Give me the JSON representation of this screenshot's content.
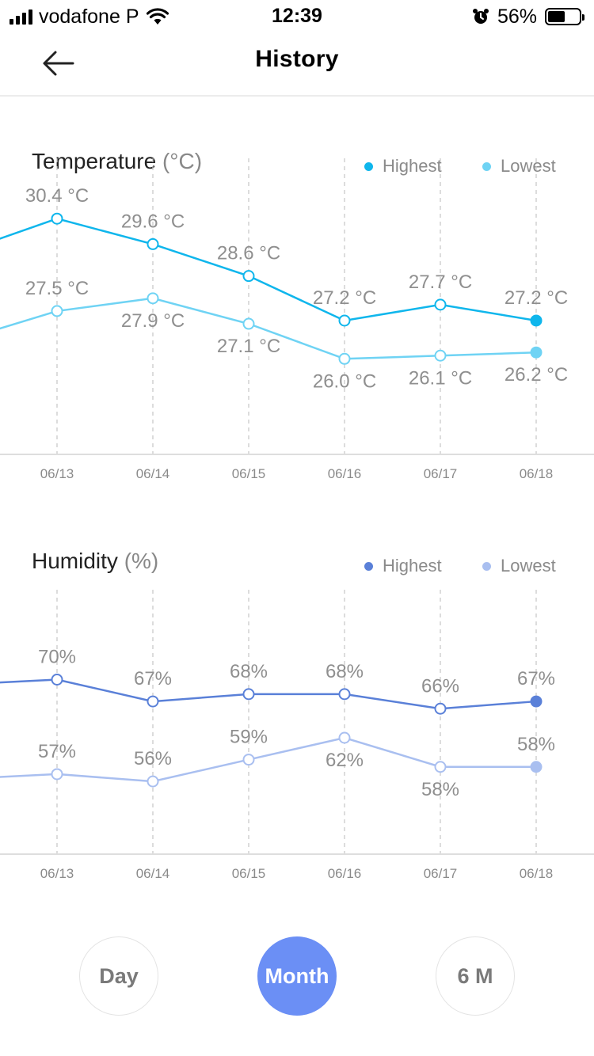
{
  "status_bar": {
    "carrier": "vodafone P",
    "time": "12:39",
    "battery": "56%",
    "battery_level": 0.56
  },
  "header": {
    "title": "History"
  },
  "temperature": {
    "title": "Temperature",
    "unit": "(°C)",
    "legend": [
      {
        "label": "Highest",
        "color": "#0fb6ec"
      },
      {
        "label": "Lowest",
        "color": "#6fd3f4"
      }
    ]
  },
  "humidity": {
    "title": "Humidity",
    "unit": "(%)",
    "legend": [
      {
        "label": "Highest",
        "color": "#5a80d8"
      },
      {
        "label": "Lowest",
        "color": "#a9bff0"
      }
    ]
  },
  "range_buttons": [
    {
      "label": "Day",
      "active": false
    },
    {
      "label": "Month",
      "active": true
    },
    {
      "label": "6 M",
      "active": false
    }
  ],
  "chart_data": [
    {
      "type": "line",
      "title": "Temperature (°C)",
      "categories": [
        "06/13",
        "06/14",
        "06/15",
        "06/16",
        "06/17",
        "06/18"
      ],
      "leading_values": {
        "Highest": 29.6,
        "Lowest": 26.8
      },
      "series": [
        {
          "name": "Highest",
          "color": "#0fb6ec",
          "values": [
            30.4,
            29.6,
            28.6,
            27.2,
            27.7,
            27.2
          ],
          "labels": [
            "30.4 °C",
            "29.6 °C",
            "28.6 °C",
            "27.2 °C",
            "27.7 °C",
            "27.2 °C"
          ]
        },
        {
          "name": "Lowest",
          "color": "#6fd3f4",
          "values": [
            27.5,
            27.9,
            27.1,
            26.0,
            26.1,
            26.2
          ],
          "labels": [
            "27.5 °C",
            "27.9 °C",
            "27.1 °C",
            "26.0 °C",
            "26.1 °C",
            "26.2 °C"
          ]
        }
      ],
      "ylim": [
        23.0,
        31.3
      ],
      "grid": "vertical-dashed",
      "legend_position": "top-right"
    },
    {
      "type": "line",
      "title": "Humidity (%)",
      "categories": [
        "06/13",
        "06/14",
        "06/15",
        "06/16",
        "06/17",
        "06/18"
      ],
      "leading_values": {
        "Highest": 69.5,
        "Lowest": 56.5
      },
      "series": [
        {
          "name": "Highest",
          "color": "#5a80d8",
          "values": [
            70,
            67,
            68,
            68,
            66,
            67
          ],
          "labels": [
            "70%",
            "67%",
            "68%",
            "68%",
            "66%",
            "67%"
          ]
        },
        {
          "name": "Lowest",
          "color": "#a9bff0",
          "values": [
            57,
            56,
            59,
            62,
            58,
            58
          ],
          "labels": [
            "57%",
            "56%",
            "59%",
            "62%",
            "58%",
            "58%"
          ]
        }
      ],
      "ylim": [
        46,
        78
      ],
      "grid": "vertical-dashed",
      "legend_position": "top-right"
    }
  ]
}
